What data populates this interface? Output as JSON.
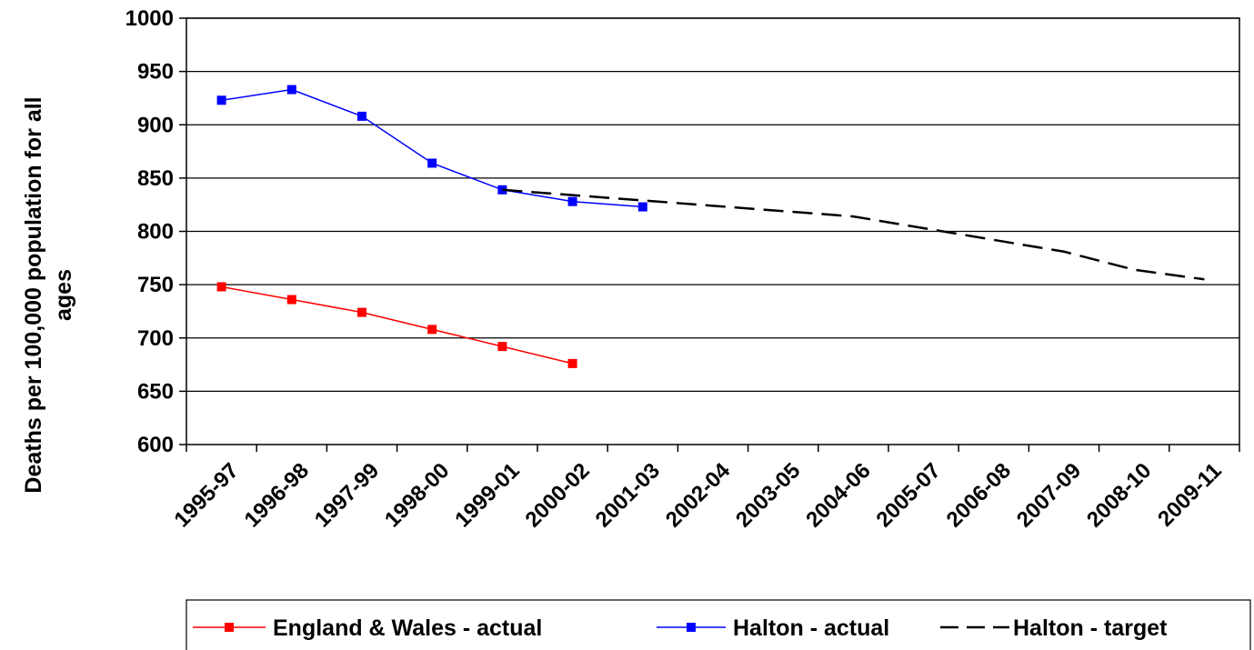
{
  "chart_data": {
    "type": "line",
    "title": "",
    "xlabel": "",
    "ylabel_lines": [
      "Deaths per 100,000 population for all",
      "ages"
    ],
    "categories": [
      "1995-97",
      "1996-98",
      "1997-99",
      "1998-00",
      "1999-01",
      "2000-02",
      "2001-03",
      "2002-04",
      "2003-05",
      "2004-06",
      "2005-07",
      "2006-08",
      "2007-09",
      "2008-10",
      "2009-11"
    ],
    "ylim": [
      600,
      1000
    ],
    "yticks": [
      "600",
      "650",
      "700",
      "750",
      "800",
      "850",
      "900",
      "950",
      "1000"
    ],
    "grid": true,
    "legend_position": "bottom",
    "series": [
      {
        "name": "England & Wales - actual",
        "color": "#ff0000",
        "style": "solid-square-markers",
        "values": [
          748,
          736,
          724,
          708,
          692,
          676,
          null,
          null,
          null,
          null,
          null,
          null,
          null,
          null,
          null
        ]
      },
      {
        "name": "Halton - actual",
        "color": "#0000ff",
        "style": "solid-square-markers",
        "values": [
          923,
          933,
          908,
          864,
          839,
          828,
          823,
          null,
          null,
          null,
          null,
          null,
          null,
          null,
          null
        ]
      },
      {
        "name": "Halton - target",
        "color": "#000000",
        "style": "dashed",
        "values": [
          null,
          null,
          null,
          null,
          839,
          834,
          829,
          824,
          819,
          814,
          803,
          792,
          781,
          764,
          755
        ]
      }
    ]
  }
}
